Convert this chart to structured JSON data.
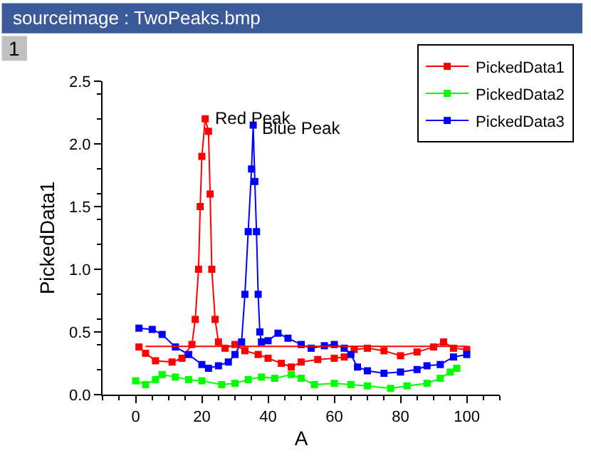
{
  "chart_data": {
    "type": "line",
    "title": "sourceimage : TwoPeaks.bmp",
    "xlabel": "A",
    "ylabel": "PickedData1",
    "annotations": [
      "1",
      {
        "text": "Red Peak",
        "x": 23,
        "y": 2.2
      },
      {
        "text": "Blue Peak",
        "x": 37.5,
        "y": 2.12
      }
    ],
    "series": [
      {
        "name": "PickedData1",
        "color": "#ff0000",
        "x": [
          1,
          3,
          6,
          11,
          14,
          17,
          18,
          19,
          19.5,
          20,
          21,
          22,
          22.5,
          23,
          24,
          25,
          27,
          30,
          33,
          37,
          40,
          44,
          47,
          50,
          55,
          60,
          63,
          66,
          70,
          75,
          80,
          85,
          90,
          93,
          96,
          100
        ],
        "values": [
          0.38,
          0.33,
          0.27,
          0.26,
          0.29,
          0.4,
          0.6,
          1.0,
          1.5,
          1.9,
          2.2,
          2.1,
          1.6,
          1.0,
          0.6,
          0.42,
          0.37,
          0.4,
          0.35,
          0.32,
          0.29,
          0.25,
          0.22,
          0.26,
          0.28,
          0.29,
          0.3,
          0.36,
          0.37,
          0.35,
          0.31,
          0.34,
          0.38,
          0.42,
          0.37,
          0.36
        ]
      },
      {
        "name": "PickedData2",
        "color": "#00ff00",
        "x": [
          0,
          3,
          6,
          8,
          12,
          16,
          20,
          26,
          30,
          34,
          38,
          42,
          47,
          50,
          54,
          60,
          65,
          70,
          77,
          82,
          88,
          92,
          95,
          97
        ],
        "values": [
          0.11,
          0.08,
          0.12,
          0.16,
          0.14,
          0.12,
          0.11,
          0.08,
          0.09,
          0.12,
          0.14,
          0.13,
          0.16,
          0.13,
          0.08,
          0.09,
          0.08,
          0.07,
          0.05,
          0.07,
          0.09,
          0.13,
          0.18,
          0.21
        ]
      },
      {
        "name": "PickedData3",
        "color": "#0000ff",
        "x": [
          1,
          5,
          8,
          12,
          16,
          20,
          22,
          25,
          28,
          30,
          32,
          33,
          34,
          35,
          35.5,
          36,
          36.5,
          37,
          37.5,
          38,
          40,
          43,
          46,
          50,
          53,
          57,
          60,
          63,
          65,
          67,
          70,
          75,
          80,
          85,
          88,
          92,
          96,
          100
        ],
        "values": [
          0.53,
          0.52,
          0.48,
          0.38,
          0.32,
          0.24,
          0.21,
          0.23,
          0.26,
          0.32,
          0.42,
          0.8,
          1.3,
          1.8,
          2.15,
          1.7,
          1.3,
          0.8,
          0.5,
          0.42,
          0.43,
          0.49,
          0.45,
          0.4,
          0.37,
          0.39,
          0.4,
          0.37,
          0.32,
          0.22,
          0.19,
          0.17,
          0.18,
          0.2,
          0.23,
          0.24,
          0.3,
          0.32
        ]
      }
    ],
    "ref_lines": [
      {
        "axis": "y",
        "value": 0.385,
        "color": "#ff0000"
      }
    ],
    "xlim": [
      -10,
      110
    ],
    "xticks": [
      0,
      20,
      40,
      60,
      80,
      100
    ],
    "ylim": [
      0,
      2.5
    ],
    "yticks": [
      {
        "value": 0,
        "label": "0.0"
      },
      {
        "value": 0.5,
        "label": "0.5"
      },
      {
        "value": 1,
        "label": "1.0"
      },
      {
        "value": 1.5,
        "label": "1.5"
      },
      {
        "value": 2,
        "label": "2.0"
      },
      {
        "value": 2.5,
        "label": "2.5"
      }
    ],
    "legend": "top right",
    "marker": "square",
    "line_style": "solid"
  }
}
